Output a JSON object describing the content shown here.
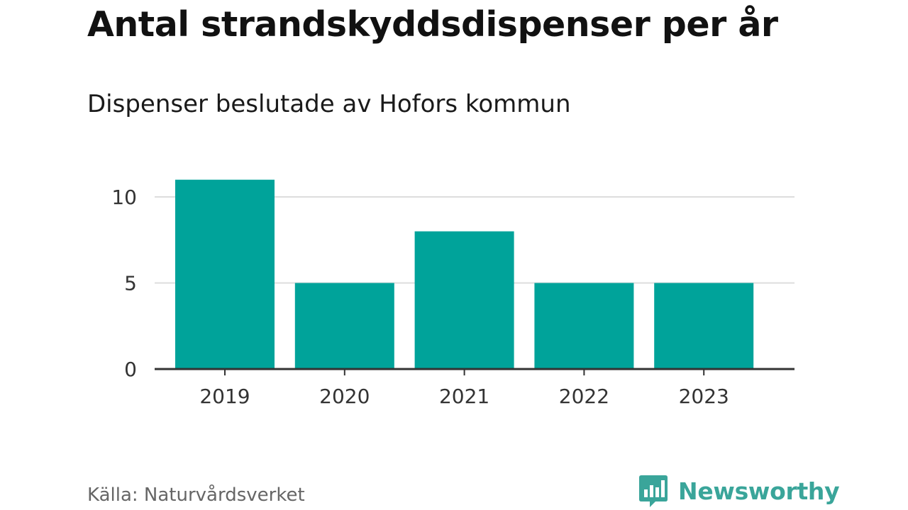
{
  "title": "Antal strandskyddsdispenser per år",
  "subtitle": "Dispenser beslutade av Hofors kommun",
  "source": "Källa: Naturvårdsverket",
  "brand": {
    "name": "Newsworthy",
    "icon": "newsworthy-logo-icon",
    "color": "#3aa59a"
  },
  "colors": {
    "bar": "#00a39a",
    "grid": "#dddddd",
    "axis": "#333333",
    "tick_text": "#333333"
  },
  "chart_data": {
    "type": "bar",
    "title": "Antal strandskyddsdispenser per år",
    "subtitle": "Dispenser beslutade av Hofors kommun",
    "categories": [
      "2019",
      "2020",
      "2021",
      "2022",
      "2023"
    ],
    "values": [
      11,
      5,
      8,
      5,
      5
    ],
    "xlabel": "",
    "ylabel": "",
    "ylim": [
      0,
      11
    ],
    "yticks": [
      0,
      5,
      10
    ],
    "grid": true,
    "legend": "none"
  }
}
